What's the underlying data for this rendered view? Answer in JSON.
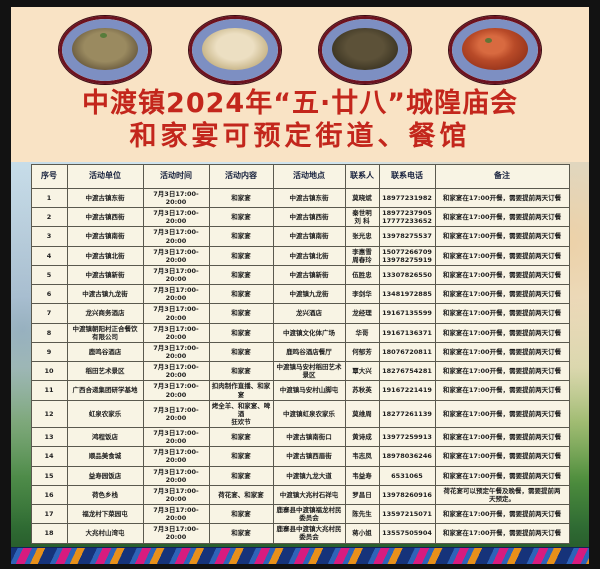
{
  "poster": {
    "title_line1": "中渡镇2024年“五·廿八”城隍庙会",
    "title_line2": "和家宴可预定街道、餐馆"
  },
  "food_photos": [
    {
      "name": "cold-mixed-dish-photo"
    },
    {
      "name": "soup-dish-photo"
    },
    {
      "name": "stir-fried-dish-photo"
    },
    {
      "name": "braised-meatballs-photo"
    }
  ],
  "table": {
    "headers": [
      "序号",
      "活动单位",
      "活动时间",
      "活动内容",
      "活动地点",
      "联系人",
      "联系电话",
      "备注"
    ],
    "rows": [
      [
        "1",
        "中渡古镇东街",
        "7月3日17:00-20:00",
        "和家宴",
        "中渡古镇东街",
        "莫晓斌",
        "18977231982",
        "和家宴在17:00开餐，需要提前两天订餐"
      ],
      [
        "2",
        "中渡古镇西街",
        "7月3日17:00-20:00",
        "和家宴",
        "中渡古镇西街",
        "秦世明\n刘 科",
        "18977237905\n17777233652",
        "和家宴在17:00开餐，需要提前两天订餐"
      ],
      [
        "3",
        "中渡古镇南街",
        "7月3日17:00-20:00",
        "和家宴",
        "中渡古镇南街",
        "张光忠",
        "13978275537",
        "和家宴在17:00开餐，需要提前两天订餐"
      ],
      [
        "4",
        "中渡古镇北街",
        "7月3日17:00-20:00",
        "和家宴",
        "中渡古镇北街",
        "李惠雪\n周春玲",
        "15077266709\n13978275919",
        "和家宴在17:00开餐，需要提前两天订餐"
      ],
      [
        "5",
        "中渡古镇新街",
        "7月3日17:00-20:00",
        "和家宴",
        "中渡古镇新街",
        "伍胜忠",
        "13307826550",
        "和家宴在17:00开餐，需要提前两天订餐"
      ],
      [
        "6",
        "中渡古镇九龙街",
        "7月3日17:00-20:00",
        "和家宴",
        "中渡镇九龙街",
        "李剑华",
        "13481972885",
        "和家宴在17:00开餐，需要提前两天订餐"
      ],
      [
        "7",
        "龙兴商务酒店",
        "7月3日17:00-20:00",
        "和家宴",
        "龙兴酒店",
        "龙经理",
        "19167135599",
        "和家宴在17:00开餐，需要提前两天订餐"
      ],
      [
        "8",
        "中渡镇朝阳村正合餐饮\n有限公司",
        "7月3日17:00-20:00",
        "和家宴",
        "中渡镇文化体广场",
        "华哥",
        "19167136371",
        "和家宴在17:00开餐，需要提前两天订餐"
      ],
      [
        "9",
        "鹿鸣谷酒店",
        "7月3日17:00-20:00",
        "和家宴",
        "鹿鸣谷酒店餐厅",
        "何郁芳",
        "18076720811",
        "和家宴在17:00开餐，需要提前两天订餐"
      ],
      [
        "10",
        "稻田艺术景区",
        "7月3日17:00-20:00",
        "和家宴",
        "中渡镇马安村稻田艺术\n景区",
        "覃大兴",
        "18276754281",
        "和家宴在17:00开餐，需要提前两天订餐"
      ],
      [
        "11",
        "广西合递集团研学基地",
        "7月3日17:00-20:00",
        "扣肉制作直播、和家宴",
        "中渡镇马安村山脚屯",
        "苏秋英",
        "19167221419",
        "和家宴在17:00开餐，需要提前两天订餐"
      ],
      [
        "12",
        "虹泉农家乐",
        "7月3日17:00-20:00",
        "烤全羊、和家宴、啤酒\n狂欢节",
        "中渡镇虹泉农家乐",
        "莫维周",
        "18277261139",
        "和家宴在17:00开餐，需要提前两天订餐"
      ],
      [
        "13",
        "鸿程饭店",
        "7月3日17:00-20:00",
        "和家宴",
        "中渡古镇南街口",
        "黄诗成",
        "13977259913",
        "和家宴在17:00开餐，需要提前两天订餐"
      ],
      [
        "14",
        "顺品美食城",
        "7月3日17:00-20:00",
        "和家宴",
        "中渡古镇西眉街",
        "韦志凤",
        "18978036246",
        "和家宴在17:00开餐，需要提前两天订餐"
      ],
      [
        "15",
        "益寿园饭店",
        "7月3日17:00-20:00",
        "和家宴",
        "中渡镇九龙大道",
        "韦益寿",
        "6531065",
        "和家宴在17:00开餐，需要提前两天订餐"
      ],
      [
        "16",
        "荷色乡栈",
        "7月3日17:00-20:00",
        "荷花宴、和家宴",
        "中渡镇大兆村石祥屯",
        "罗昌日",
        "13978260916",
        "荷花宴可以预定午餐及晚餐，需要提前两\n天预定。"
      ],
      [
        "17",
        "福龙村下菜园屯",
        "7月3日17:00-20:00",
        "和家宴",
        "鹿寨县中渡镇福龙村民\n委员会",
        "陈先生",
        "13597215071",
        "和家宴在17:00开餐，需要提前两天订餐"
      ],
      [
        "18",
        "大兆村山湾屯",
        "7月3日17:00-20:00",
        "和家宴",
        "鹿寨县中渡镇大兆村民\n委员会",
        "蒋小姐",
        "13557505904",
        "和家宴在17:00开餐，需要提前两天订餐"
      ]
    ]
  },
  "colors": {
    "title_red": "#c3261c",
    "poster_cream": "#f9e3c5",
    "table_bg": "#f8f4e4",
    "pattern_blue": "#2e63b8",
    "pattern_magenta": "#d81b7f",
    "pattern_orange": "#e8901a"
  }
}
